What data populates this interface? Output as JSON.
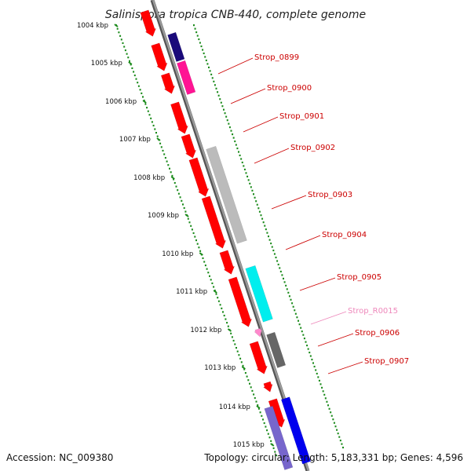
{
  "title": "Salinispora tropica CNB-440, complete genome",
  "footer": {
    "accession": "Accession: NC_009380",
    "stats": "Topology: circular; Length: 5,183,331 bp; Genes: 4,596"
  },
  "colors": {
    "backbone": "#999999",
    "backbone_edge": "#555555",
    "tick": "#1a8a1a",
    "label_line": "#cc0000",
    "label_text": "#cc0000",
    "label_rna": "#ee88bb"
  },
  "scale": {
    "marks": [
      {
        "label": "1004 kbp"
      },
      {
        "label": "1005 kbp"
      },
      {
        "label": "1006 kbp"
      },
      {
        "label": "1007 kbp"
      },
      {
        "label": "1008 kbp"
      },
      {
        "label": "1009 kbp"
      },
      {
        "label": "1010 kbp"
      },
      {
        "label": "1011 kbp"
      },
      {
        "label": "1012 kbp"
      },
      {
        "label": "1013 kbp"
      },
      {
        "label": "1014 kbp"
      },
      {
        "label": "1015 kbp"
      }
    ]
  },
  "labels": [
    {
      "text": "Strop_0899",
      "color": "#cc0000"
    },
    {
      "text": "Strop_0900",
      "color": "#cc0000"
    },
    {
      "text": "Strop_0901",
      "color": "#cc0000"
    },
    {
      "text": "Strop_0902",
      "color": "#cc0000"
    },
    {
      "text": "Strop_0903",
      "color": "#cc0000"
    },
    {
      "text": "Strop_0904",
      "color": "#cc0000"
    },
    {
      "text": "Strop_0905",
      "color": "#cc0000"
    },
    {
      "text": "Strop_R0015",
      "color": "#ee88bb"
    },
    {
      "text": "Strop_0906",
      "color": "#cc0000"
    },
    {
      "text": "Strop_0907",
      "color": "#cc0000"
    }
  ],
  "features": [
    {
      "color": "#ff0000"
    },
    {
      "color": "#ff0000"
    },
    {
      "color": "#ff0000"
    },
    {
      "color": "#ff0000"
    },
    {
      "color": "#ff0000"
    },
    {
      "color": "#ff0000"
    },
    {
      "color": "#ff0000"
    },
    {
      "color": "#ff0000"
    },
    {
      "color": "#ff0000"
    },
    {
      "color": "#ff0000"
    },
    {
      "color": "#ff0000"
    },
    {
      "color": "#ff0000"
    },
    {
      "color": "#1a0a7a"
    },
    {
      "color": "#ff1493"
    },
    {
      "color": "#bbbbbb"
    },
    {
      "color": "#00eeee"
    },
    {
      "color": "#666666"
    },
    {
      "color": "#ff88cc"
    },
    {
      "color": "#7766cc"
    },
    {
      "color": "#0000ee"
    }
  ]
}
